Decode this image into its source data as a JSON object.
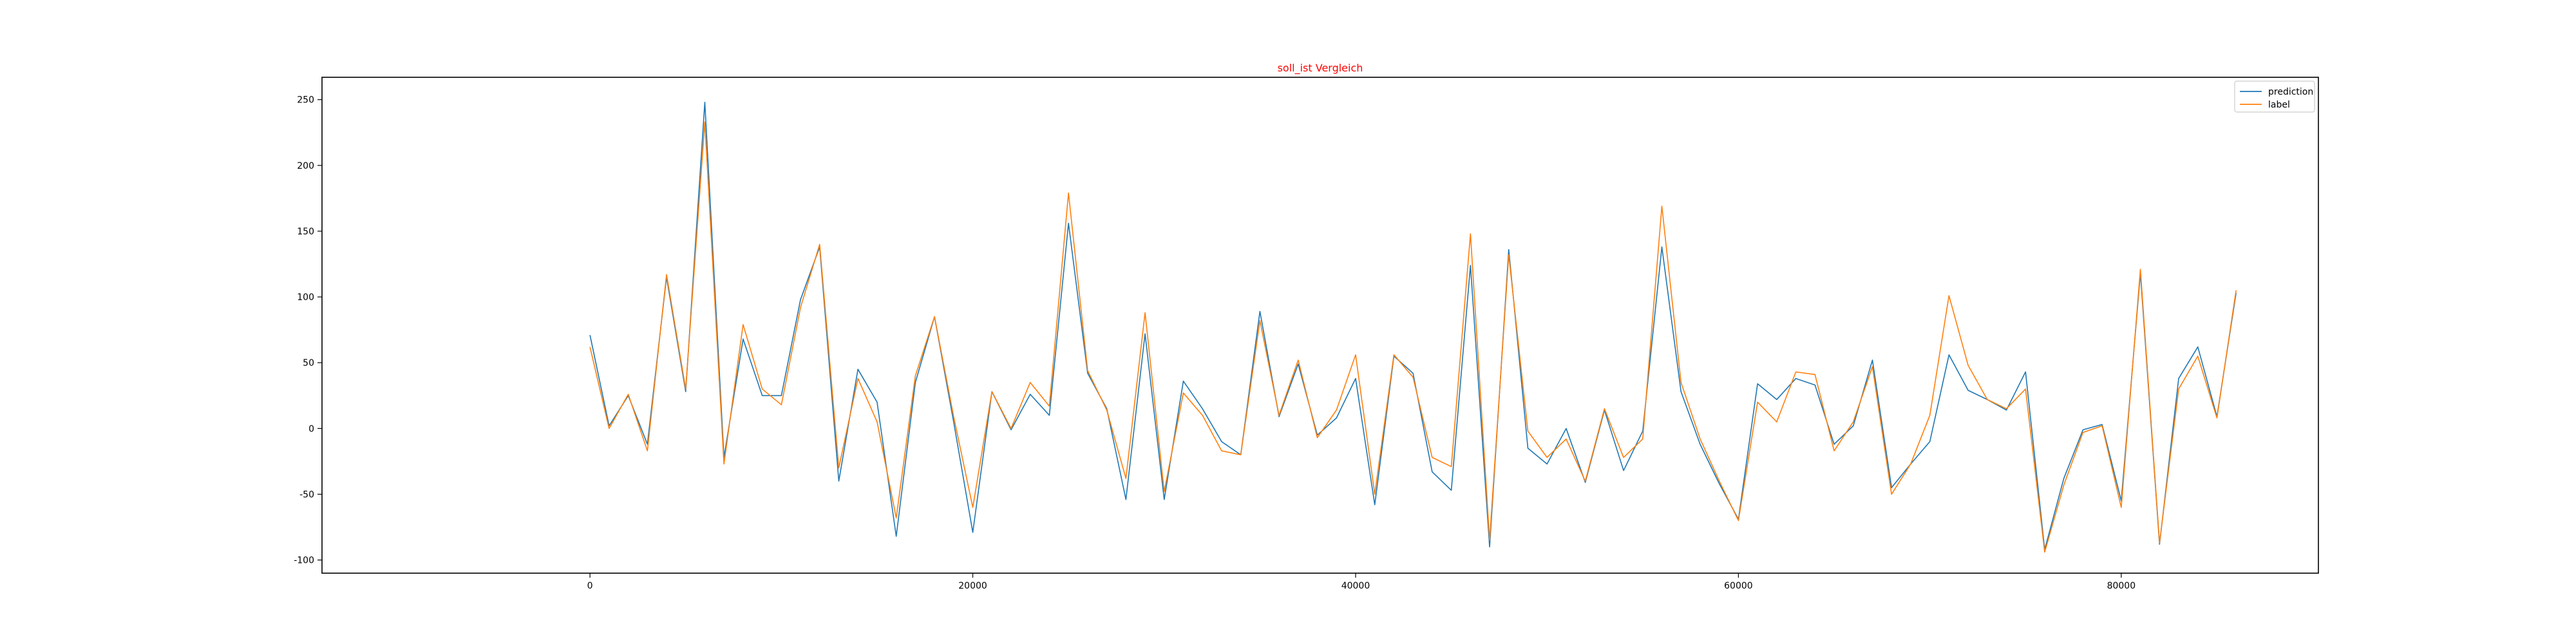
{
  "chart_data": {
    "type": "line",
    "title": "soll_ist Vergleich",
    "title_color": "#ff0000",
    "xlabel": "",
    "ylabel": "",
    "xlim": [
      -14000,
      90300
    ],
    "ylim": [
      -110,
      267
    ],
    "x_ticks": [
      0,
      20000,
      40000,
      60000,
      80000
    ],
    "y_ticks": [
      -100,
      -50,
      0,
      50,
      100,
      150,
      200,
      250
    ],
    "grid": false,
    "legend_position": "top-right",
    "x": [
      0,
      1000,
      2000,
      3000,
      4000,
      5000,
      6000,
      7000,
      8000,
      9000,
      10000,
      11000,
      12000,
      13000,
      14000,
      15000,
      16000,
      17000,
      18000,
      19000,
      20000,
      21000,
      22000,
      23000,
      24000,
      25000,
      26000,
      27000,
      28000,
      29000,
      30000,
      31000,
      32000,
      33000,
      34000,
      35000,
      36000,
      37000,
      38000,
      39000,
      40000,
      41000,
      42000,
      43000,
      44000,
      45000,
      46000,
      47000,
      48000,
      49000,
      50000,
      51000,
      52000,
      53000,
      54000,
      55000,
      56000,
      57000,
      58000,
      59000,
      60000,
      61000,
      62000,
      63000,
      64000,
      65000,
      66000,
      67000,
      68000,
      69000,
      70000,
      71000,
      72000,
      73000,
      74000,
      75000,
      76000,
      77000,
      78000,
      79000,
      80000,
      81000,
      82000,
      83000,
      84000,
      85000,
      86000
    ],
    "series": [
      {
        "name": "prediction",
        "color": "#1f77b4",
        "values": [
          71,
          2,
          25,
          -12,
          115,
          28,
          248,
          -22,
          68,
          25,
          25,
          98,
          138,
          -40,
          45,
          20,
          -82,
          35,
          85,
          5,
          -79,
          28,
          -1,
          26,
          10,
          156,
          42,
          15,
          -54,
          72,
          -54,
          36,
          15,
          -10,
          -20,
          89,
          9,
          49,
          -5,
          8,
          38,
          -58,
          55,
          42,
          -33,
          -47,
          124,
          -90,
          136,
          -15,
          -27,
          0,
          -41,
          14,
          -32,
          -2,
          138,
          28,
          -12,
          -42,
          -69,
          34,
          22,
          38,
          33,
          -12,
          2,
          52,
          -45,
          -27,
          -10,
          56,
          29,
          22,
          14,
          43,
          -92,
          -38,
          -1,
          3,
          -55,
          118,
          -88,
          38,
          62,
          9,
          103
        ]
      },
      {
        "name": "label",
        "color": "#ff7f0e",
        "values": [
          62,
          0,
          26,
          -17,
          117,
          30,
          233,
          -27,
          79,
          30,
          18,
          92,
          140,
          -30,
          38,
          5,
          -68,
          40,
          85,
          9,
          -60,
          28,
          0,
          35,
          17,
          179,
          44,
          14,
          -38,
          88,
          -48,
          27,
          10,
          -17,
          -20,
          82,
          10,
          52,
          -7,
          14,
          56,
          -50,
          56,
          39,
          -22,
          -29,
          148,
          -85,
          132,
          -2,
          -22,
          -8,
          -40,
          15,
          -22,
          -8,
          169,
          35,
          -8,
          -40,
          -70,
          20,
          5,
          43,
          41,
          -17,
          5,
          47,
          -50,
          -27,
          10,
          101,
          48,
          22,
          15,
          30,
          -94,
          -43,
          -3,
          2,
          -60,
          121,
          -87,
          30,
          55,
          8,
          105
        ]
      }
    ]
  }
}
